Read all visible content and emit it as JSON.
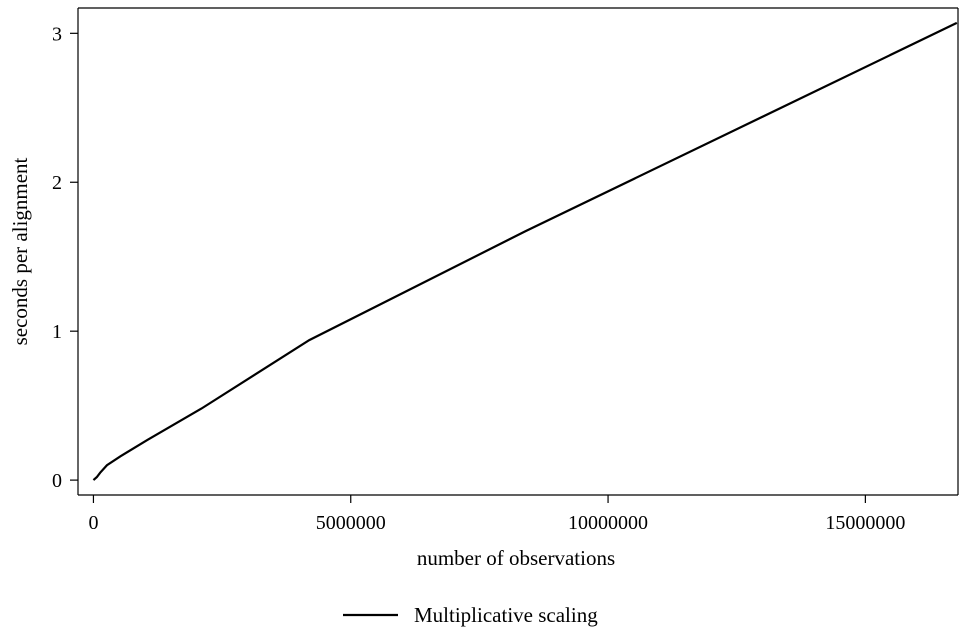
{
  "chart_data": {
    "type": "line",
    "title": "",
    "xlabel": "number of observations",
    "ylabel": "seconds per alignment",
    "xlim": [
      -300000,
      16800000
    ],
    "ylim": [
      -0.1,
      3.17
    ],
    "xticks": [
      0,
      5000000,
      10000000,
      15000000
    ],
    "xtick_labels": [
      "0",
      "5000000",
      "10000000",
      "15000000"
    ],
    "yticks": [
      0,
      1,
      2,
      3
    ],
    "ytick_labels": [
      "0",
      "1",
      "2",
      "3"
    ],
    "grid": false,
    "legend_position": "bottom",
    "series": [
      {
        "name": "Multiplicative scaling",
        "color": "#000000",
        "x": [
          0,
          65536,
          131072,
          262144,
          524288,
          1048576,
          2097152,
          4194304,
          8388608,
          16777216
        ],
        "y": [
          0.0,
          0.02,
          0.05,
          0.1,
          0.16,
          0.27,
          0.48,
          0.94,
          1.67,
          3.07
        ]
      }
    ]
  }
}
